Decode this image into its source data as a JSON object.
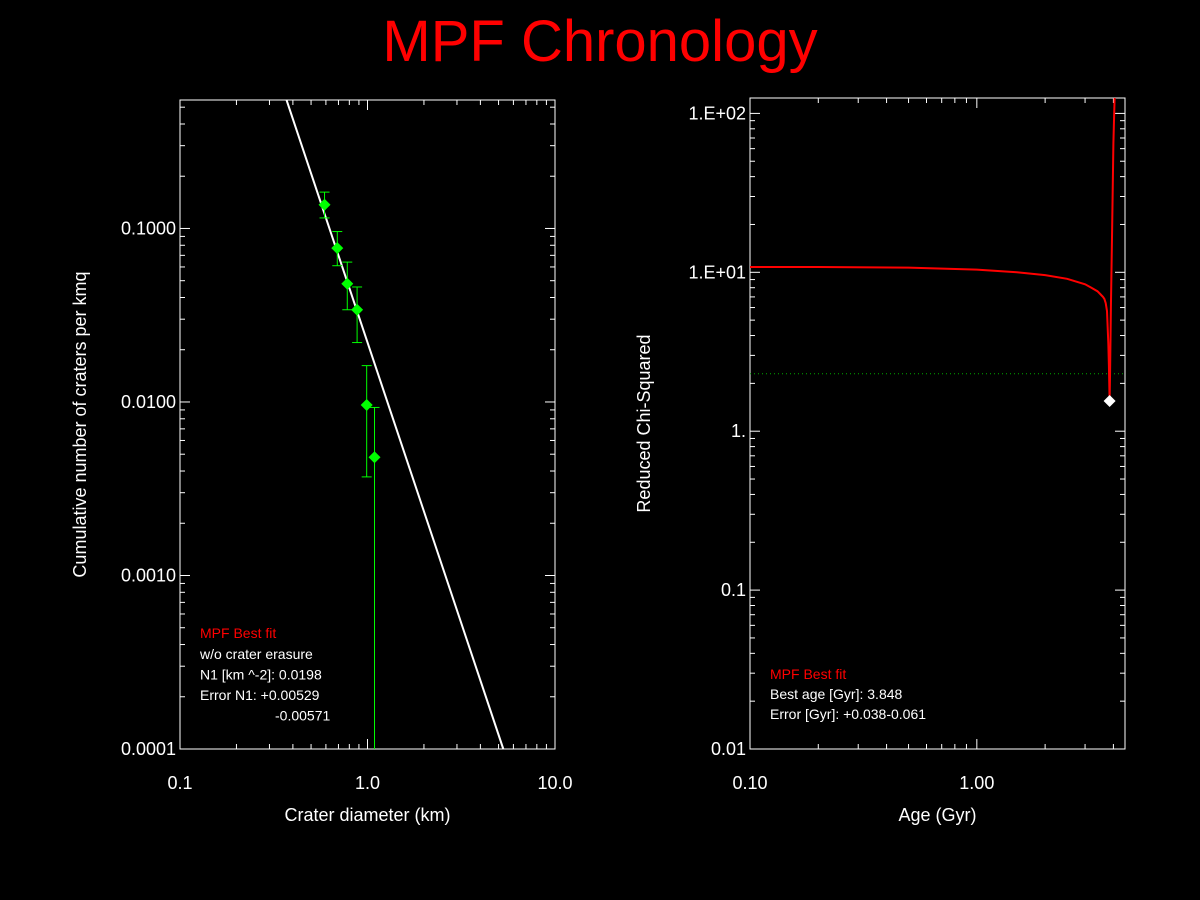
{
  "title": "MPF Chronology",
  "colors": {
    "background": "#000000",
    "axes": "#ffffff",
    "title": "#ff0000",
    "points": "#00ff00",
    "fit_left": "#ffffff",
    "fit_right": "#ff0000",
    "threshold": "#00aa00",
    "best_marker": "#ffffff"
  },
  "chart_data": [
    {
      "type": "scatter",
      "xlabel": "Crater diameter (km)",
      "ylabel": "Cumulative number of craters per kmq",
      "xscale": "log",
      "yscale": "log",
      "xlim": [
        0.1,
        10.0
      ],
      "ylim": [
        0.0001,
        0.55
      ],
      "xticks": [
        {
          "value": 0.1,
          "label": "0.1"
        },
        {
          "value": 1.0,
          "label": "1.0"
        },
        {
          "value": 10.0,
          "label": "10.0"
        }
      ],
      "yticks": [
        {
          "value": 0.0001,
          "label": "0.0001"
        },
        {
          "value": 0.001,
          "label": "0.0010"
        },
        {
          "value": 0.01,
          "label": "0.0100"
        },
        {
          "value": 0.1,
          "label": "0.1000"
        }
      ],
      "points": [
        {
          "x": 0.59,
          "y": 0.137,
          "ylo": 0.115,
          "yhi": 0.162
        },
        {
          "x": 0.69,
          "y": 0.077,
          "ylo": 0.061,
          "yhi": 0.096
        },
        {
          "x": 0.78,
          "y": 0.048,
          "ylo": 0.034,
          "yhi": 0.064
        },
        {
          "x": 0.88,
          "y": 0.034,
          "ylo": 0.022,
          "yhi": 0.046
        },
        {
          "x": 0.99,
          "y": 0.0096,
          "ylo": 0.0037,
          "yhi": 0.0162
        },
        {
          "x": 1.09,
          "y": 0.0048,
          "ylo": 0.0001,
          "yhi": 0.0093
        }
      ],
      "fit_line": {
        "x": [
          0.37,
          5.3
        ],
        "y": [
          0.55,
          0.0001
        ]
      },
      "legend_position": "bottom-left",
      "legend": {
        "heading": "MPF Best fit",
        "lines": [
          "w/o crater erasure",
          "N1 [km ^-2]: 0.0198",
          "Error N1: +0.00529",
          "-0.00571"
        ]
      }
    },
    {
      "type": "line",
      "xlabel": "Age (Gyr)",
      "ylabel": "Reduced Chi-Squared",
      "xscale": "log",
      "yscale": "log",
      "xlim": [
        0.1,
        4.5
      ],
      "ylim": [
        0.01,
        125
      ],
      "xticks": [
        {
          "value": 0.1,
          "label": "0.10"
        },
        {
          "value": 1.0,
          "label": "1.00"
        }
      ],
      "yticks": [
        {
          "value": 0.01,
          "label": "0.01"
        },
        {
          "value": 0.1,
          "label": "0.1"
        },
        {
          "value": 1,
          "label": "1."
        },
        {
          "value": 10,
          "label": "1.E+01"
        },
        {
          "value": 100,
          "label": "1.E+02"
        }
      ],
      "series": [
        {
          "x": [
            0.1,
            0.2,
            0.5,
            1.0,
            1.5,
            2.0,
            2.5,
            3.0,
            3.2,
            3.4,
            3.5,
            3.6,
            3.65,
            3.7,
            3.75,
            3.8,
            3.82,
            3.848,
            3.87,
            3.9,
            3.95,
            4.0,
            4.05
          ],
          "y": [
            10.8,
            10.8,
            10.7,
            10.4,
            10.0,
            9.6,
            9.1,
            8.4,
            8.0,
            7.6,
            7.3,
            7.0,
            6.8,
            6.4,
            5.7,
            3.6,
            2.6,
            1.55,
            2.4,
            6.0,
            20.0,
            65.0,
            125.0
          ]
        }
      ],
      "threshold": 2.3,
      "best": {
        "x": 3.848,
        "y": 1.55
      },
      "legend_position": "bottom-left",
      "legend": {
        "heading": "MPF Best fit",
        "lines": [
          "Best age [Gyr]: 3.848",
          "Error [Gyr]: +0.038-0.061"
        ]
      }
    }
  ]
}
